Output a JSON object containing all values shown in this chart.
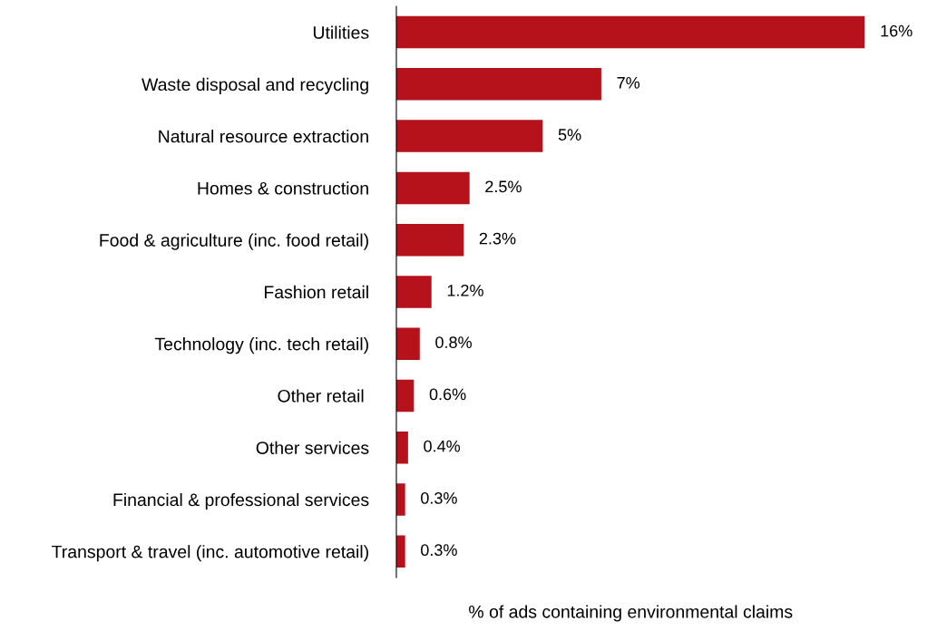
{
  "chart_data": {
    "type": "bar",
    "orientation": "horizontal",
    "xlabel": "% of ads containing environmental claims",
    "categories": [
      "Utilities",
      "Waste disposal and recycling",
      "Natural resource extraction",
      "Homes & construction",
      "Food & agriculture (inc. food retail)",
      "Fashion retail",
      "Technology (inc. tech retail)",
      "Other retail ",
      "Other services",
      "Financial & professional services",
      "Transport & travel (inc. automotive retail)"
    ],
    "values": [
      16,
      7,
      5,
      2.5,
      2.3,
      1.2,
      0.8,
      0.6,
      0.4,
      0.3,
      0.3
    ],
    "value_labels": [
      "16%",
      "7%",
      "5%",
      "2.5%",
      "2.3%",
      "1.2%",
      "0.8%",
      "0.6%",
      "0.4%",
      "0.3%",
      "0.3%"
    ],
    "color": "#b5121b",
    "grid": false,
    "legend": false,
    "tick_labels": "y"
  }
}
